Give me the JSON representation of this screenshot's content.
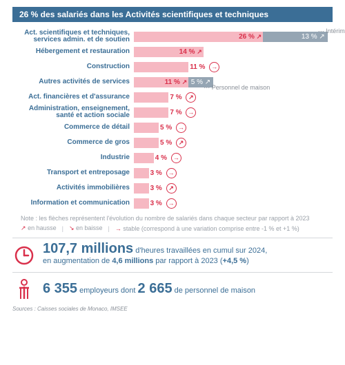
{
  "title": "26 % des salariés dans les Activités scientifiques et techniques",
  "bar_scale_max": 40,
  "rows": [
    {
      "label": "Act. scientifiques et techniques, services admin. et de soutien",
      "value": 26,
      "pct": "26 %",
      "trend": "up",
      "pct_inside": true,
      "second": {
        "value": 13,
        "pct": "13 % ↗"
      },
      "second_note": "Intérim"
    },
    {
      "label": "Hébergement et restauration",
      "value": 14,
      "pct": "14 %",
      "trend": "up",
      "pct_inside": true
    },
    {
      "label": "Construction",
      "value": 11,
      "pct": "11 %",
      "trend": "flat",
      "pct_inside": false
    },
    {
      "label": "Autres activités de services",
      "value": 11,
      "pct": "11 %",
      "trend": "up",
      "pct_inside": true,
      "second": {
        "value": 5,
        "pct": "5 % ↗"
      },
      "second_note": "Personnel de maison"
    },
    {
      "label": "Act. financières et d'assurance",
      "value": 7,
      "pct": "7 %",
      "trend": "up",
      "pct_inside": false
    },
    {
      "label": "Administration, enseignement, santé et action sociale",
      "value": 7,
      "pct": "7 %",
      "trend": "flat",
      "pct_inside": false
    },
    {
      "label": "Commerce de détail",
      "value": 5,
      "pct": "5 %",
      "trend": "flat",
      "pct_inside": false
    },
    {
      "label": "Commerce de gros",
      "value": 5,
      "pct": "5 %",
      "trend": "up",
      "pct_inside": false
    },
    {
      "label": "Industrie",
      "value": 4,
      "pct": "4 %",
      "trend": "flat",
      "pct_inside": false
    },
    {
      "label": "Transport et entreposage",
      "value": 3,
      "pct": "3 %",
      "trend": "flat",
      "pct_inside": false
    },
    {
      "label": "Activités immobilières",
      "value": 3,
      "pct": "3 %",
      "trend": "up",
      "pct_inside": false
    },
    {
      "label": "Information et communication",
      "value": 3,
      "pct": "3 %",
      "trend": "flat",
      "pct_inside": false
    }
  ],
  "note": "Note : les flèches représentent l'évolution du nombre de salariés dans chaque secteur par rapport à 2023",
  "legend": {
    "up": "en hausse",
    "down": "en baisse",
    "flat": "stable (correspond à une variation comprise entre -1 % et +1 %)"
  },
  "stat1": {
    "big": "107,7 millions",
    "rest1": "d'heures travaillées en cumul sur 2024,",
    "rest2a": "en augmentation de ",
    "rest2b": "4,6 millions",
    "rest2c": " par rapport à 2023 (",
    "rest2d": "+4,5 %",
    "rest2e": ")"
  },
  "stat2": {
    "big1": "6 355",
    "mid1": "employeurs dont",
    "big2": "2 665",
    "mid2": "de personnel de maison"
  },
  "sources": "Sources : Caisses sociales de Monaco, IMSEE",
  "colors": {
    "blue": "#3b6e96",
    "pink": "#f6b8c2",
    "pink_txt": "#d9304b",
    "grey_bar": "#95a5b3",
    "grey_txt": "#8a9098",
    "bg": "#ffffff"
  }
}
